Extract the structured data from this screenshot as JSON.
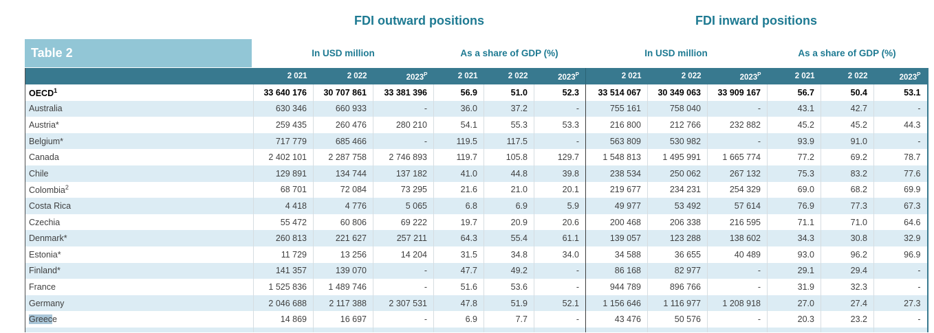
{
  "header": {
    "table_label": "Table 2",
    "outward_title": "FDI outward positions",
    "inward_title": "FDI inward positions",
    "group_labels": {
      "usd": "In USD million",
      "gdp": "As a share of GDP (%)"
    },
    "year_columns": [
      "2 021",
      "2 022",
      "2023"
    ],
    "projection_suffix": "P"
  },
  "colors": {
    "header_band": "#38798f",
    "table_label_box": "#92c6d6",
    "title_text": "#1e7a92",
    "alt_row": "#dcecf4",
    "text_selection": "#a9c6d8"
  },
  "table": {
    "column_order": [
      "outward_usd_2021",
      "outward_usd_2022",
      "outward_usd_2023p",
      "outward_gdp_2021",
      "outward_gdp_2022",
      "outward_gdp_2023p",
      "inward_usd_2021",
      "inward_usd_2022",
      "inward_usd_2023p",
      "inward_gdp_2021",
      "inward_gdp_2022",
      "inward_gdp_2023p"
    ],
    "rows": [
      {
        "country": "OECD",
        "footnote": "1",
        "bold": true,
        "values": [
          "33 640 176",
          "30 707 861",
          "33 381 396",
          "56.9",
          "51.0",
          "52.3",
          "33 514 067",
          "30 349 063",
          "33 909 167",
          "56.7",
          "50.4",
          "53.1"
        ]
      },
      {
        "country": "Australia",
        "values": [
          "630 346",
          "660 933",
          "-",
          "36.0",
          "37.2",
          "-",
          "755 161",
          "758 040",
          "-",
          "43.1",
          "42.7",
          "-"
        ]
      },
      {
        "country": "Austria*",
        "values": [
          "259 435",
          "260 476",
          "280 210",
          "54.1",
          "55.3",
          "53.3",
          "216 800",
          "212 766",
          "232 882",
          "45.2",
          "45.2",
          "44.3"
        ]
      },
      {
        "country": "Belgium*",
        "values": [
          "717 779",
          "685 466",
          "-",
          "119.5",
          "117.5",
          "-",
          "563 809",
          "530 982",
          "-",
          "93.9",
          "91.0",
          "-"
        ]
      },
      {
        "country": "Canada",
        "values": [
          "2 402 101",
          "2 287 758",
          "2 746 893",
          "119.7",
          "105.8",
          "129.7",
          "1 548 813",
          "1 495 991",
          "1 665 774",
          "77.2",
          "69.2",
          "78.7"
        ]
      },
      {
        "country": "Chile",
        "values": [
          "129 891",
          "134 744",
          "137 182",
          "41.0",
          "44.8",
          "39.8",
          "238 534",
          "250 062",
          "267 132",
          "75.3",
          "83.2",
          "77.6"
        ]
      },
      {
        "country": "Colombia",
        "footnote": "2",
        "values": [
          "68 701",
          "72 084",
          "73 295",
          "21.6",
          "21.0",
          "20.1",
          "219 677",
          "234 231",
          "254 329",
          "69.0",
          "68.2",
          "69.9"
        ]
      },
      {
        "country": "Costa Rica",
        "values": [
          "4 418",
          "4 776",
          "5 065",
          "6.8",
          "6.9",
          "5.9",
          "49 977",
          "53 492",
          "57 614",
          "76.9",
          "77.3",
          "67.3"
        ]
      },
      {
        "country": "Czechia",
        "values": [
          "55 472",
          "60 806",
          "69 222",
          "19.7",
          "20.9",
          "20.6",
          "200 468",
          "206 338",
          "216 595",
          "71.1",
          "71.0",
          "64.6"
        ]
      },
      {
        "country": "Denmark*",
        "values": [
          "260 813",
          "221 627",
          "257 211",
          "64.3",
          "55.4",
          "61.1",
          "139 057",
          "123 288",
          "138 602",
          "34.3",
          "30.8",
          "32.9"
        ]
      },
      {
        "country": "Estonia*",
        "values": [
          "11 729",
          "13 256",
          "14 204",
          "31.5",
          "34.8",
          "34.0",
          "34 588",
          "36 655",
          "40 489",
          "93.0",
          "96.2",
          "96.9"
        ]
      },
      {
        "country": "Finland*",
        "values": [
          "141 357",
          "139 070",
          "-",
          "47.7",
          "49.2",
          "-",
          "86 168",
          "82 977",
          "-",
          "29.1",
          "29.4",
          "-"
        ]
      },
      {
        "country": "France",
        "values": [
          "1 525 836",
          "1 489 746",
          "-",
          "51.6",
          "53.6",
          "-",
          "944 789",
          "896 766",
          "-",
          "31.9",
          "32.3",
          "-"
        ]
      },
      {
        "country": "Germany",
        "values": [
          "2 046 688",
          "2 117 388",
          "2 307 531",
          "47.8",
          "51.9",
          "52.1",
          "1 156 646",
          "1 116 977",
          "1 208 918",
          "27.0",
          "27.4",
          "27.3"
        ]
      },
      {
        "country": "Greece",
        "selection_highlight": "Greec",
        "values": [
          "14 869",
          "16 697",
          "-",
          "6.9",
          "7.7",
          "-",
          "43 476",
          "50 576",
          "-",
          "20.3",
          "23.2",
          "-"
        ]
      }
    ]
  }
}
